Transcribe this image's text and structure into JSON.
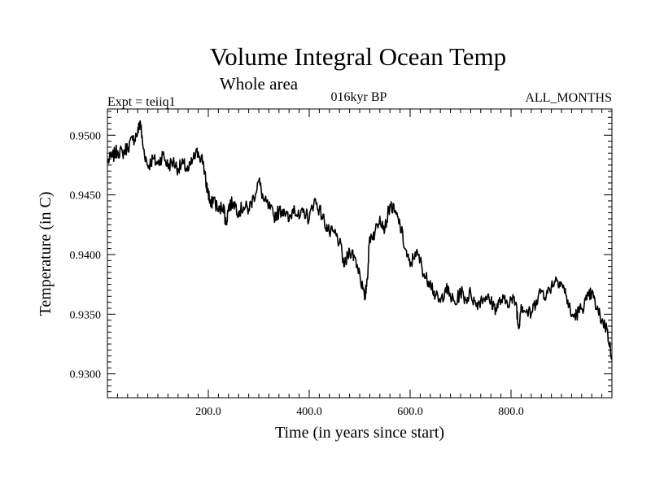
{
  "chart_data": {
    "type": "line",
    "title": "Volume Integral Ocean Temp",
    "subtitle": "Whole area",
    "annotations": {
      "left": "Expt = teiiq1",
      "center": "016kyr BP",
      "right": "ALL_MONTHS"
    },
    "xlabel": "Time (in years since start)",
    "ylabel": "Temperature (in C)",
    "xlim": [
      0,
      1000
    ],
    "ylim": [
      0.928,
      0.9522
    ],
    "xticks": [
      200,
      400,
      600,
      800
    ],
    "xtick_labels": [
      "200.0",
      "400.0",
      "600.0",
      "800.0"
    ],
    "yticks": [
      0.93,
      0.935,
      0.94,
      0.945,
      0.95
    ],
    "ytick_labels": [
      "0.9300",
      "0.9350",
      "0.9400",
      "0.9450",
      "0.9500"
    ],
    "grid": false,
    "legend": "none",
    "line_color": "#000000",
    "series": [
      {
        "x": [
          0,
          10,
          20,
          30,
          40,
          50,
          60,
          65,
          70,
          80,
          90,
          100,
          110,
          120,
          130,
          140,
          150,
          160,
          170,
          180,
          190,
          195,
          200,
          205,
          210,
          220,
          230,
          235,
          240,
          250,
          260,
          270,
          280,
          290,
          300,
          310,
          320,
          330,
          340,
          350,
          360,
          370,
          380,
          390,
          400,
          410,
          420,
          430,
          440,
          450,
          460,
          470,
          480,
          490,
          500,
          510,
          515,
          520,
          530,
          540,
          550,
          560,
          570,
          580,
          590,
          600,
          610,
          620,
          630,
          640,
          650,
          660,
          670,
          680,
          690,
          700,
          710,
          720,
          730,
          740,
          750,
          760,
          770,
          780,
          790,
          800,
          810,
          815,
          820,
          830,
          840,
          850,
          860,
          870,
          880,
          890,
          900,
          910,
          920,
          930,
          940,
          950,
          960,
          970,
          980,
          990,
          1000
        ],
        "y": [
          0.9478,
          0.9482,
          0.9487,
          0.9485,
          0.949,
          0.9496,
          0.9502,
          0.9512,
          0.9492,
          0.9474,
          0.948,
          0.9476,
          0.9484,
          0.9474,
          0.9478,
          0.9472,
          0.9476,
          0.947,
          0.948,
          0.9486,
          0.9478,
          0.946,
          0.9452,
          0.944,
          0.9448,
          0.9436,
          0.9442,
          0.9425,
          0.944,
          0.9444,
          0.9436,
          0.944,
          0.9438,
          0.9448,
          0.9462,
          0.9445,
          0.944,
          0.9432,
          0.9436,
          0.9438,
          0.9428,
          0.9441,
          0.943,
          0.9436,
          0.943,
          0.9446,
          0.9438,
          0.9428,
          0.9418,
          0.9418,
          0.941,
          0.939,
          0.9404,
          0.9398,
          0.9385,
          0.9362,
          0.938,
          0.9415,
          0.9418,
          0.9432,
          0.9422,
          0.9442,
          0.9435,
          0.9425,
          0.9405,
          0.939,
          0.9402,
          0.9395,
          0.938,
          0.9378,
          0.9365,
          0.936,
          0.9372,
          0.9365,
          0.9358,
          0.937,
          0.9362,
          0.9368,
          0.9358,
          0.9362,
          0.9365,
          0.936,
          0.9355,
          0.9362,
          0.936,
          0.9362,
          0.936,
          0.9338,
          0.9358,
          0.9352,
          0.935,
          0.9362,
          0.937,
          0.9366,
          0.9374,
          0.938,
          0.9376,
          0.9365,
          0.9348,
          0.935,
          0.9355,
          0.9362,
          0.9368,
          0.9354,
          0.9345,
          0.9338,
          0.9312
        ]
      }
    ]
  }
}
